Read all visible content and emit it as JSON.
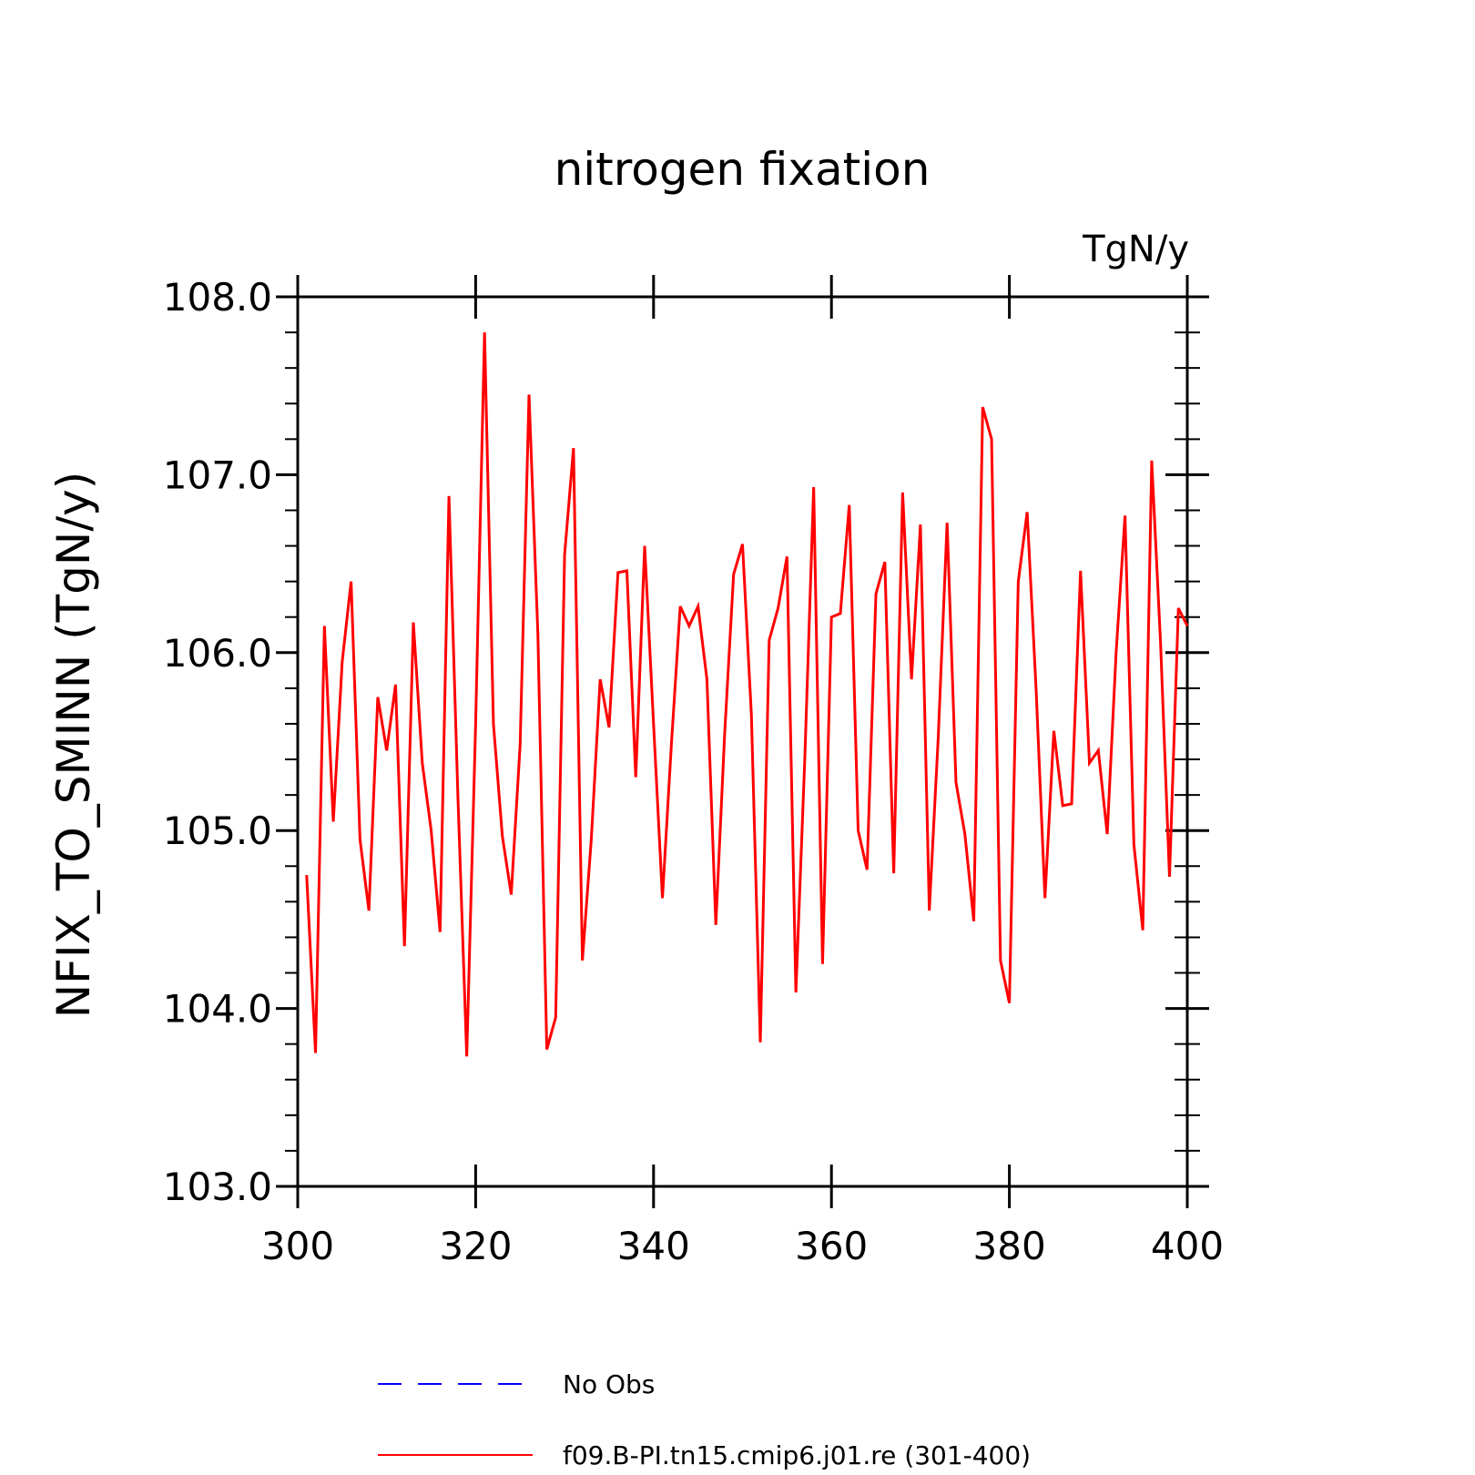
{
  "chart_data": {
    "type": "line",
    "title": "nitrogen fixation",
    "units": "TgN/y",
    "xlabel": "",
    "ylabel": "NFIX_TO_SMINN  (TgN/y)",
    "xlim": [
      300,
      400
    ],
    "ylim": [
      103.0,
      108.0
    ],
    "x_ticks": [
      300,
      320,
      340,
      360,
      380,
      400
    ],
    "x_tick_labels": [
      "300",
      "320",
      "340",
      "360",
      "380",
      "400"
    ],
    "y_ticks": [
      103.0,
      104.0,
      105.0,
      106.0,
      107.0,
      108.0
    ],
    "y_tick_labels": [
      "103.0",
      "104.0",
      "105.0",
      "106.0",
      "107.0",
      "108.0"
    ],
    "grid": false,
    "legend_position": "bottom",
    "series": [
      {
        "name": "No Obs",
        "color": "#0000ff",
        "dash": "dashed",
        "x": [],
        "values": []
      },
      {
        "name": "f09.B-PI.tn15.cmip6.j01.re (301-400)",
        "color": "#ff0000",
        "dash": "solid",
        "x": [
          301,
          302,
          303,
          304,
          305,
          306,
          307,
          308,
          309,
          310,
          311,
          312,
          313,
          314,
          315,
          316,
          317,
          318,
          319,
          320,
          321,
          322,
          323,
          324,
          325,
          326,
          327,
          328,
          329,
          330,
          331,
          332,
          333,
          334,
          335,
          336,
          337,
          338,
          339,
          340,
          341,
          342,
          343,
          344,
          345,
          346,
          347,
          348,
          349,
          350,
          351,
          352,
          353,
          354,
          355,
          356,
          357,
          358,
          359,
          360,
          361,
          362,
          363,
          364,
          365,
          366,
          367,
          368,
          369,
          370,
          371,
          372,
          373,
          374,
          375,
          376,
          377,
          378,
          379,
          380,
          381,
          382,
          383,
          384,
          385,
          386,
          387,
          388,
          389,
          390,
          391,
          392,
          393,
          394,
          395,
          396,
          397,
          398,
          399,
          400
        ],
        "values": [
          104.75,
          103.75,
          106.15,
          105.05,
          105.95,
          106.4,
          104.95,
          104.55,
          105.75,
          105.45,
          105.82,
          104.35,
          106.17,
          105.38,
          105.0,
          104.43,
          106.88,
          105.2,
          103.73,
          105.6,
          107.8,
          105.6,
          104.97,
          104.64,
          105.48,
          107.45,
          106.1,
          103.77,
          103.95,
          106.55,
          107.15,
          104.27,
          104.95,
          105.85,
          105.58,
          106.45,
          106.46,
          105.3,
          106.6,
          105.6,
          104.62,
          105.48,
          106.26,
          106.15,
          106.26,
          105.85,
          104.47,
          105.55,
          106.44,
          106.61,
          105.65,
          103.81,
          106.07,
          106.25,
          106.54,
          104.09,
          105.4,
          106.93,
          104.25,
          106.2,
          106.22,
          106.83,
          105.0,
          104.78,
          106.33,
          106.51,
          104.76,
          106.9,
          105.85,
          106.72,
          104.55,
          105.52,
          106.73,
          105.27,
          104.98,
          104.49,
          107.38,
          107.2,
          104.27,
          104.03,
          106.4,
          106.79,
          105.8,
          104.62,
          105.56,
          105.14,
          105.15,
          106.46,
          105.38,
          105.45,
          104.98,
          106.0,
          106.77,
          104.92,
          104.44,
          107.08,
          106.05,
          104.74,
          106.25,
          106.15
        ]
      }
    ]
  }
}
